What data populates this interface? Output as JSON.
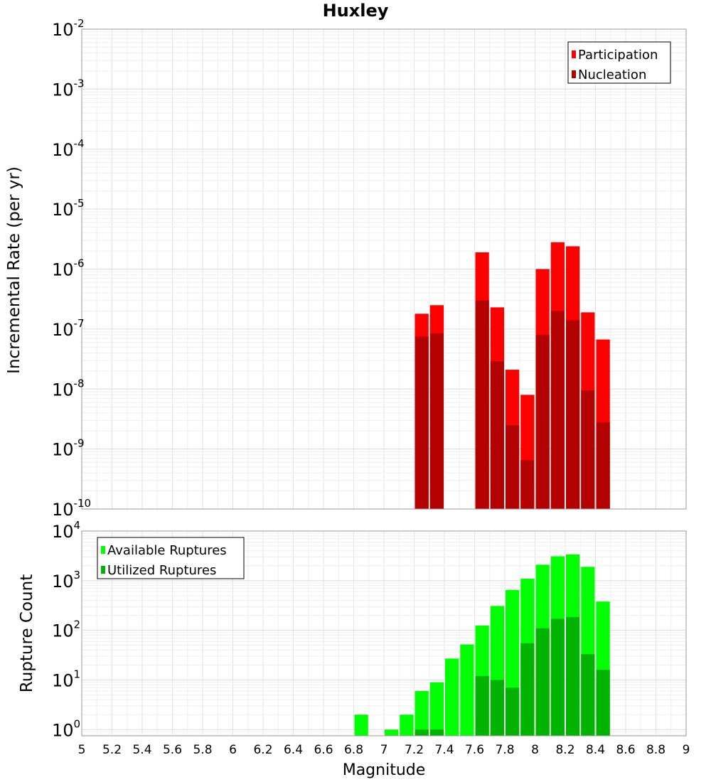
{
  "title": "Huxley",
  "xlabel": "Magnitude",
  "chart_data": [
    {
      "type": "bar",
      "title": "Huxley",
      "xlabel": "Magnitude",
      "ylabel": "Incremental Rate (per yr)",
      "yscale": "log",
      "xlim": [
        5,
        9
      ],
      "ylim": [
        1e-10,
        0.01
      ],
      "ytick_labels": [
        {
          "base": "10",
          "exp": "-2"
        },
        {
          "base": "10",
          "exp": "-3"
        },
        {
          "base": "10",
          "exp": "-4"
        },
        {
          "base": "10",
          "exp": "-5"
        },
        {
          "base": "10",
          "exp": "-6"
        },
        {
          "base": "10",
          "exp": "-7"
        },
        {
          "base": "10",
          "exp": "-8"
        },
        {
          "base": "10",
          "exp": "-9"
        },
        {
          "base": "10",
          "exp": "-10"
        }
      ],
      "ytick_values": [
        0.01,
        0.001,
        0.0001,
        1e-05,
        1e-06,
        1e-07,
        1e-08,
        1e-09,
        1e-10
      ],
      "grid": true,
      "legend_position": "top-right",
      "x": [
        7.25,
        7.35,
        7.65,
        7.75,
        7.85,
        7.95,
        8.05,
        8.15,
        8.25,
        8.35,
        8.45
      ],
      "series": [
        {
          "name": "Participation",
          "color": "#ff0000",
          "values": [
            1.8e-07,
            2.5e-07,
            1.9e-06,
            2.3e-07,
            2.1e-08,
            8e-09,
            1e-06,
            2.8e-06,
            2.4e-06,
            1.9e-07,
            6.7e-08
          ]
        },
        {
          "name": "Nucleation",
          "color": "#b30000",
          "values": [
            7.5e-08,
            8.5e-08,
            3e-07,
            2.9e-08,
            2.5e-09,
            6.5e-10,
            8e-08,
            2e-07,
            1.4e-07,
            9.5e-09,
            2.8e-09
          ]
        }
      ]
    },
    {
      "type": "bar",
      "xlabel": "Magnitude",
      "ylabel": "Rupture Count",
      "yscale": "log",
      "xlim": [
        5,
        9
      ],
      "ylim": [
        0.75,
        10000
      ],
      "ytick_labels": [
        {
          "base": "10",
          "exp": "4"
        },
        {
          "base": "10",
          "exp": "3"
        },
        {
          "base": "10",
          "exp": "2"
        },
        {
          "base": "10",
          "exp": "1"
        },
        {
          "base": "10",
          "exp": "0"
        }
      ],
      "ytick_values": [
        10000,
        1000,
        100,
        10,
        1
      ],
      "xticks": [
        "5",
        "5.2",
        "5.4",
        "5.6",
        "5.8",
        "6",
        "6.2",
        "6.4",
        "6.6",
        "6.8",
        "7",
        "7.2",
        "7.4",
        "7.6",
        "7.8",
        "8",
        "8.2",
        "8.4",
        "8.6",
        "8.8",
        "9"
      ],
      "xtick_values": [
        5,
        5.2,
        5.4,
        5.6,
        5.8,
        6,
        6.2,
        6.4,
        6.6,
        6.8,
        7,
        7.2,
        7.4,
        7.6,
        7.8,
        8,
        8.2,
        8.4,
        8.6,
        8.8,
        9
      ],
      "grid": true,
      "legend_position": "top-left",
      "x": [
        6.85,
        7.05,
        7.15,
        7.25,
        7.35,
        7.45,
        7.55,
        7.65,
        7.75,
        7.85,
        7.95,
        8.05,
        8.15,
        8.25,
        8.35,
        8.45
      ],
      "series": [
        {
          "name": "Available Ruptures",
          "color": "#00ff00",
          "values": [
            2,
            1,
            2,
            6,
            9,
            27,
            52,
            125,
            310,
            650,
            1100,
            2100,
            3100,
            3400,
            1900,
            380
          ]
        },
        {
          "name": "Utilized Ruptures",
          "color": "#00b300",
          "values": [
            0,
            0,
            0,
            1,
            1,
            0,
            0,
            12,
            10,
            7,
            55,
            110,
            170,
            185,
            33,
            16
          ]
        }
      ]
    }
  ]
}
